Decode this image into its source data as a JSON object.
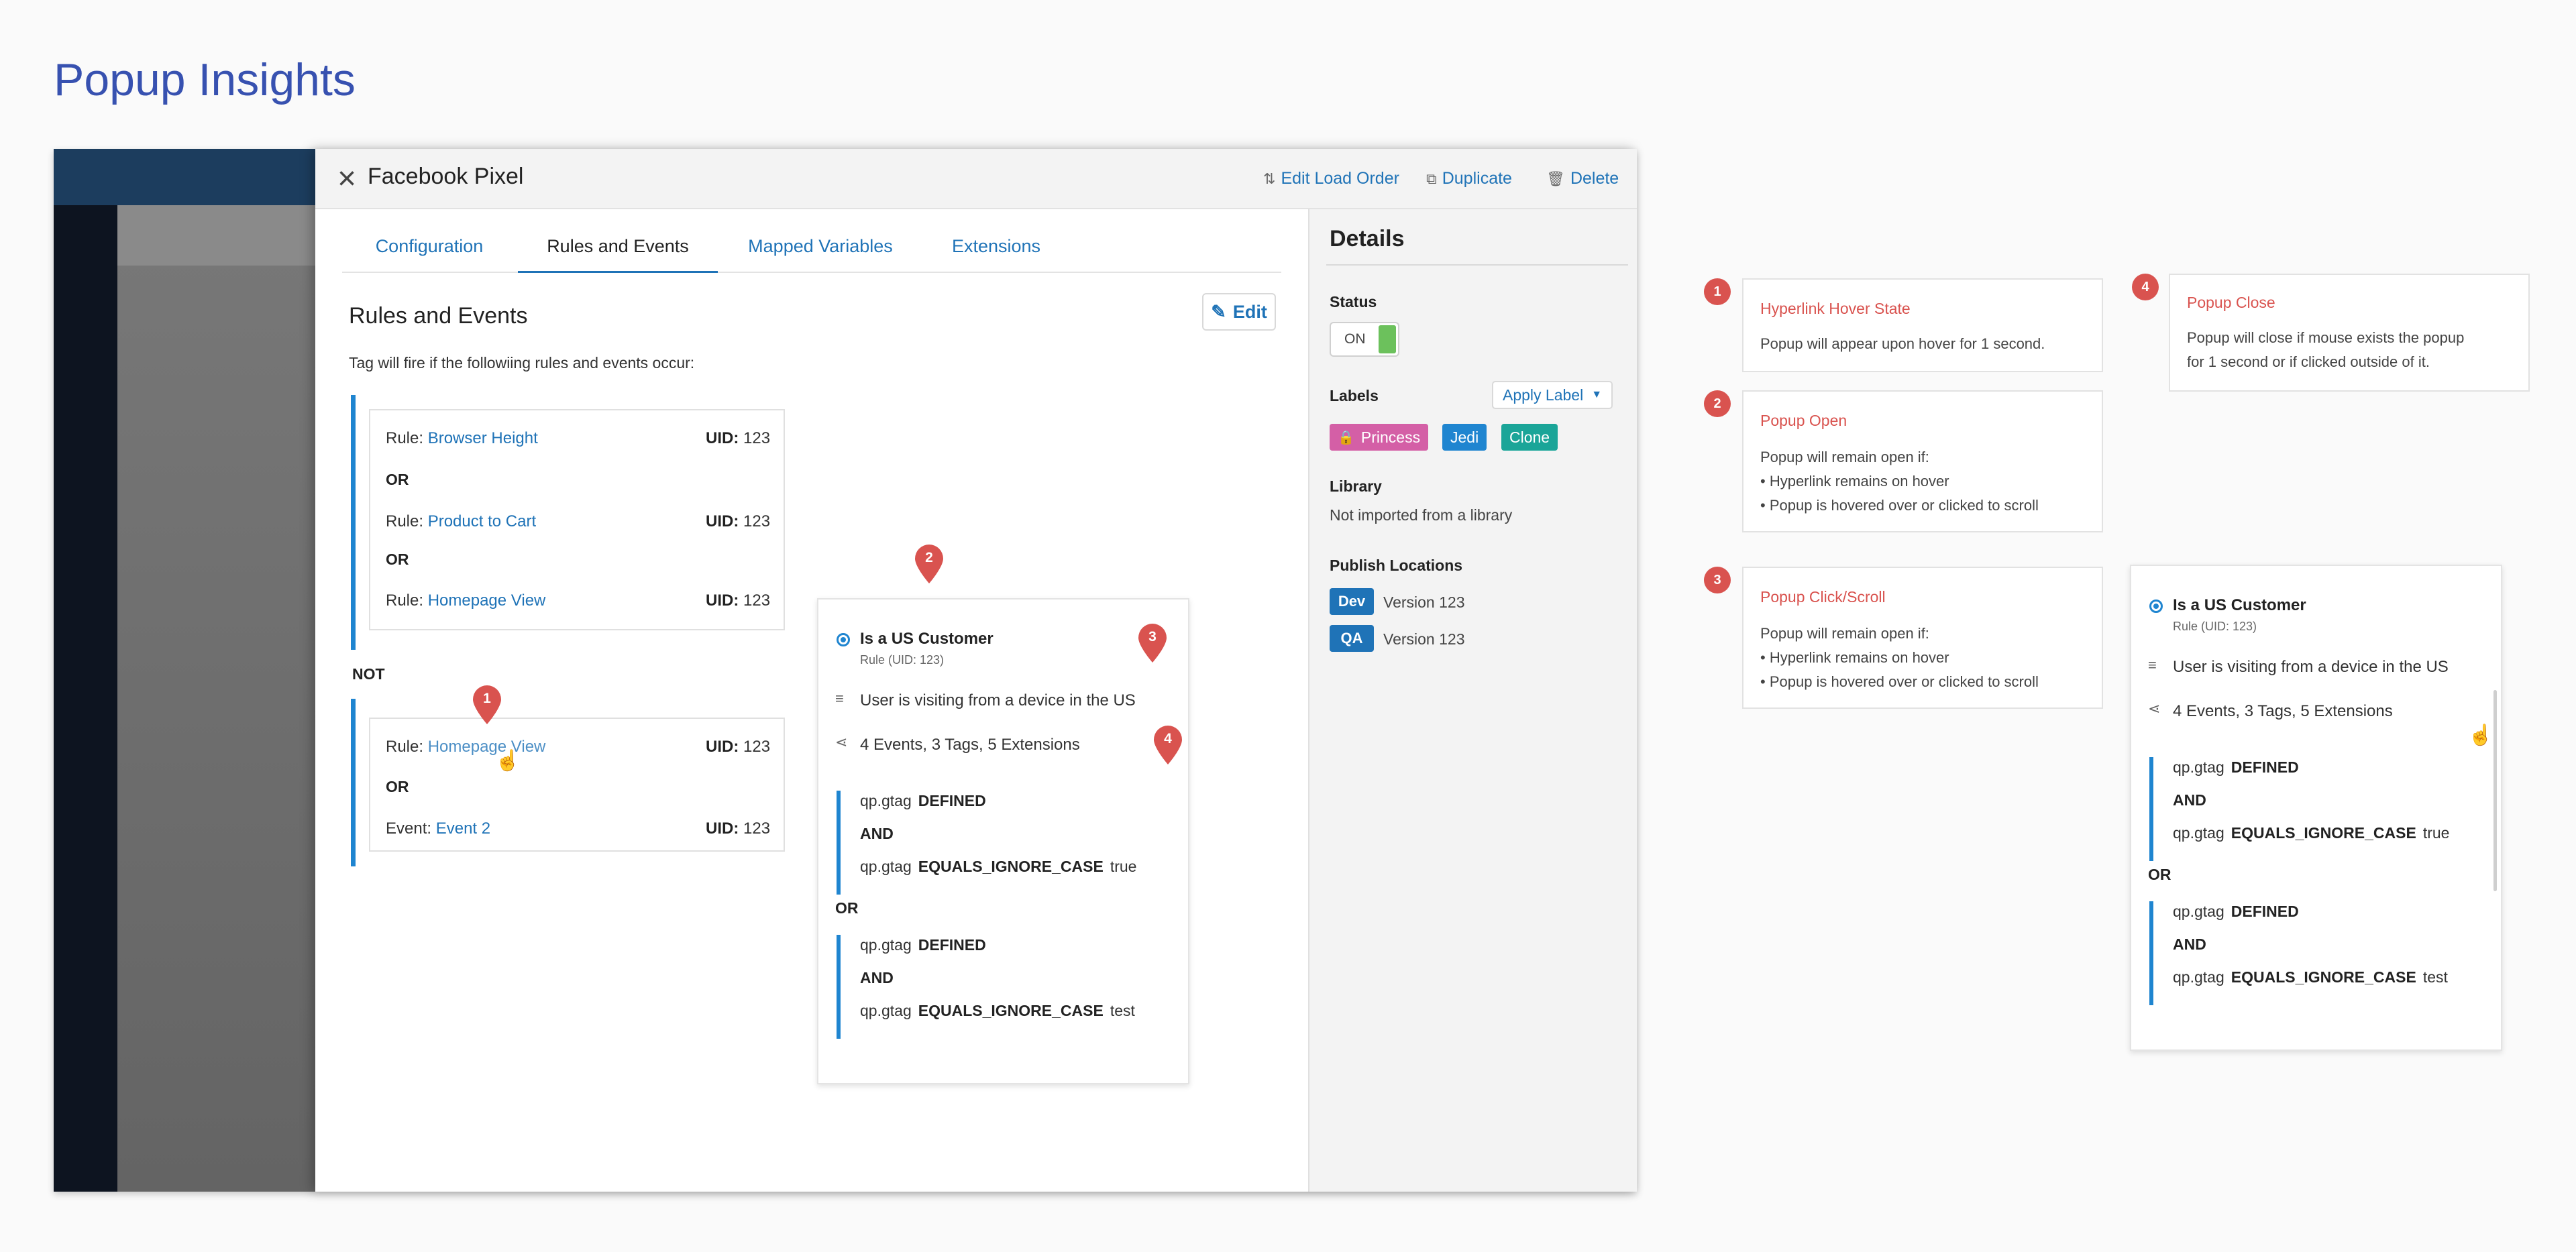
{
  "page_title": "Popup Insights",
  "modal": {
    "title": "Facebook Pixel",
    "actions": {
      "edit_load_order": "Edit Load Order",
      "duplicate": "Duplicate",
      "delete": "Delete"
    },
    "tabs": [
      "Configuration",
      "Rules and Events",
      "Mapped Variables",
      "Extensions"
    ],
    "active_tab": "Rules and Events",
    "section_title": "Rules and Events",
    "edit_label": "Edit",
    "subtext": "Tag will fire if the followiing rules and events occur:",
    "include_group": {
      "items": [
        {
          "prefix": "Rule:",
          "name": "Browser Height",
          "uid_label": "UID:",
          "uid": "123"
        },
        {
          "prefix": "Rule:",
          "name": "Product to Cart",
          "uid_label": "UID:",
          "uid": "123"
        },
        {
          "prefix": "Rule:",
          "name": "Homepage View",
          "uid_label": "UID:",
          "uid": "123"
        }
      ],
      "separator": "OR"
    },
    "not_label": "NOT",
    "exclude_group": {
      "items": [
        {
          "prefix": "Rule:",
          "name": "Homepage View",
          "uid_label": "UID:",
          "uid": "123"
        },
        {
          "prefix": "Event:",
          "name": "Event 2",
          "uid_label": "UID:",
          "uid": "123"
        }
      ],
      "separator": "OR"
    }
  },
  "popup_card": {
    "title": "Is a US Customer",
    "subtitle": "Rule (UID: 123)",
    "description": "User is visiting from a device in the US",
    "usage": "4 Events, 3 Tags, 5 Extensions",
    "condition_groups": [
      [
        {
          "var": "qp.gtag",
          "op": "DEFINED",
          "value": ""
        },
        {
          "var": "qp.gtag",
          "op": "EQUALS_IGNORE_CASE",
          "value": "true"
        }
      ],
      [
        {
          "var": "qp.gtag",
          "op": "DEFINED",
          "value": ""
        },
        {
          "var": "qp.gtag",
          "op": "EQUALS_IGNORE_CASE",
          "value": "test"
        }
      ]
    ],
    "and_label": "AND",
    "or_label": "OR"
  },
  "details": {
    "title": "Details",
    "status_label": "Status",
    "status_value": "ON",
    "labels_label": "Labels",
    "apply_label": "Apply Label",
    "label_pills": [
      {
        "text": "Princess",
        "color": "#d45fa6"
      },
      {
        "text": "Jedi",
        "color": "#1f85d0"
      },
      {
        "text": "Clone",
        "color": "#1aa598"
      }
    ],
    "library_label": "Library",
    "library_value": "Not imported from a library",
    "publish_label": "Publish Locations",
    "publish": [
      {
        "env": "Dev",
        "version": "Version 123"
      },
      {
        "env": "QA",
        "version": "Version 123"
      }
    ]
  },
  "notes": [
    {
      "num": "1",
      "title": "Hyperlink Hover State",
      "lines": [
        "Popup will appear upon hover for 1 second."
      ]
    },
    {
      "num": "2",
      "title": "Popup Open",
      "lines": [
        "Popup will remain open if:",
        "• Hyperlink remains on hover",
        "• Popup is hovered over or clicked to scroll"
      ]
    },
    {
      "num": "3",
      "title": "Popup Click/Scroll",
      "lines": [
        "Popup will remain open if:",
        "• Hyperlink remains on hover",
        "• Popup is hovered over or clicked to scroll"
      ]
    },
    {
      "num": "4",
      "title": "Popup Close",
      "lines": [
        "Popup will close if mouse exists the popup",
        "for 1 second or if clicked outside of it."
      ]
    }
  ],
  "colors": {
    "accent": "#1f73b7",
    "title_blue": "#3751b0",
    "marker_red": "#d9534f",
    "status_green": "#6cc15c"
  }
}
